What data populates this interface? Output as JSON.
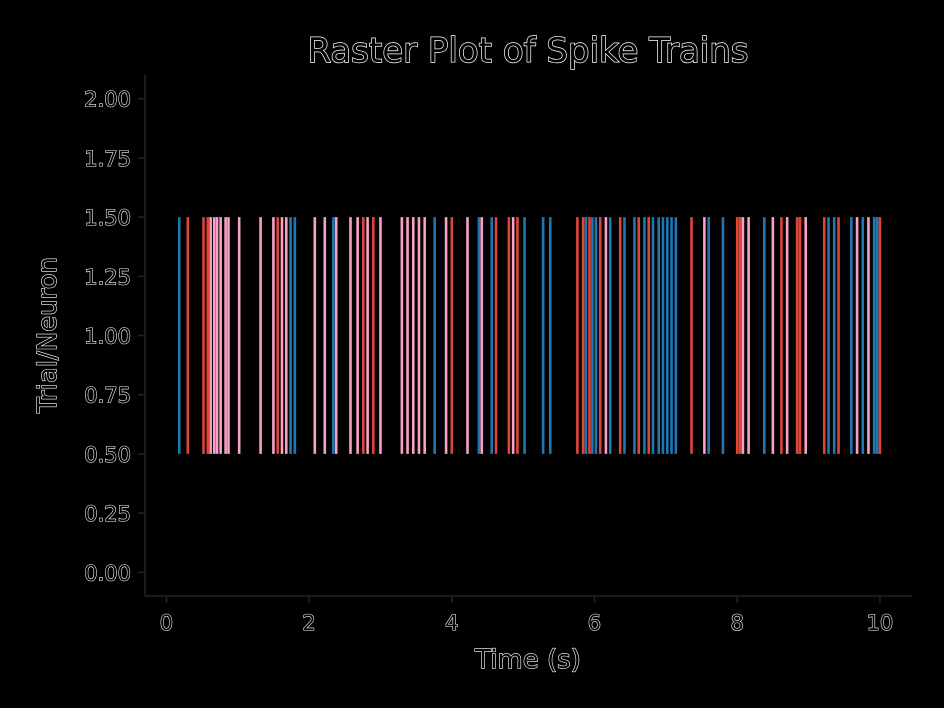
{
  "chart_data": {
    "type": "raster",
    "title": "Raster Plot of Spike Trains",
    "xlabel": "Time (s)",
    "ylabel": "Trial/Neuron",
    "xlim": [
      -0.3,
      10.45
    ],
    "ylim": [
      -0.1,
      2.1
    ],
    "xticks": [
      0,
      2,
      4,
      6,
      8,
      10
    ],
    "xtick_labels": [
      "0",
      "2",
      "4",
      "6",
      "8",
      "10"
    ],
    "yticks": [
      0.0,
      0.25,
      0.5,
      0.75,
      1.0,
      1.25,
      1.5,
      1.75,
      2.0
    ],
    "ytick_labels": [
      "0.00",
      "0.25",
      "0.50",
      "0.75",
      "1.00",
      "1.25",
      "1.50",
      "1.75",
      "2.00"
    ],
    "line_y_range": [
      0.5,
      1.5
    ],
    "grid": false,
    "colors": {
      "blue": "#1f77b4",
      "red": "#e0453a",
      "pink": "#f7a1c4"
    },
    "spikes": [
      {
        "x": 0.18,
        "color": "blue"
      },
      {
        "x": 0.3,
        "color": "red"
      },
      {
        "x": 0.52,
        "color": "red"
      },
      {
        "x": 0.58,
        "color": "red"
      },
      {
        "x": 0.62,
        "color": "pink"
      },
      {
        "x": 0.67,
        "color": "pink"
      },
      {
        "x": 0.71,
        "color": "pink"
      },
      {
        "x": 0.76,
        "color": "pink"
      },
      {
        "x": 0.83,
        "color": "pink"
      },
      {
        "x": 0.87,
        "color": "pink"
      },
      {
        "x": 1.02,
        "color": "pink"
      },
      {
        "x": 1.32,
        "color": "pink"
      },
      {
        "x": 1.5,
        "color": "pink"
      },
      {
        "x": 1.56,
        "color": "red"
      },
      {
        "x": 1.62,
        "color": "pink"
      },
      {
        "x": 1.68,
        "color": "pink"
      },
      {
        "x": 1.74,
        "color": "blue"
      },
      {
        "x": 1.8,
        "color": "blue"
      },
      {
        "x": 2.08,
        "color": "pink"
      },
      {
        "x": 2.22,
        "color": "pink"
      },
      {
        "x": 2.34,
        "color": "blue"
      },
      {
        "x": 2.38,
        "color": "pink"
      },
      {
        "x": 2.58,
        "color": "pink"
      },
      {
        "x": 2.68,
        "color": "pink"
      },
      {
        "x": 2.76,
        "color": "red"
      },
      {
        "x": 2.82,
        "color": "pink"
      },
      {
        "x": 2.9,
        "color": "red"
      },
      {
        "x": 3.0,
        "color": "pink"
      },
      {
        "x": 3.3,
        "color": "pink"
      },
      {
        "x": 3.38,
        "color": "pink"
      },
      {
        "x": 3.46,
        "color": "pink"
      },
      {
        "x": 3.54,
        "color": "pink"
      },
      {
        "x": 3.62,
        "color": "pink"
      },
      {
        "x": 3.76,
        "color": "blue"
      },
      {
        "x": 3.92,
        "color": "pink"
      },
      {
        "x": 4.0,
        "color": "red"
      },
      {
        "x": 4.22,
        "color": "pink"
      },
      {
        "x": 4.38,
        "color": "blue"
      },
      {
        "x": 4.42,
        "color": "pink"
      },
      {
        "x": 4.56,
        "color": "blue"
      },
      {
        "x": 4.62,
        "color": "red"
      },
      {
        "x": 4.8,
        "color": "red"
      },
      {
        "x": 4.86,
        "color": "pink"
      },
      {
        "x": 4.92,
        "color": "red"
      },
      {
        "x": 5.02,
        "color": "blue"
      },
      {
        "x": 5.28,
        "color": "blue"
      },
      {
        "x": 5.38,
        "color": "blue"
      },
      {
        "x": 5.76,
        "color": "red"
      },
      {
        "x": 5.84,
        "color": "red"
      },
      {
        "x": 5.88,
        "color": "blue"
      },
      {
        "x": 5.93,
        "color": "red"
      },
      {
        "x": 5.97,
        "color": "blue"
      },
      {
        "x": 6.02,
        "color": "blue"
      },
      {
        "x": 6.08,
        "color": "red"
      },
      {
        "x": 6.16,
        "color": "pink"
      },
      {
        "x": 6.22,
        "color": "blue"
      },
      {
        "x": 6.36,
        "color": "red"
      },
      {
        "x": 6.42,
        "color": "blue"
      },
      {
        "x": 6.56,
        "color": "blue"
      },
      {
        "x": 6.62,
        "color": "red"
      },
      {
        "x": 6.7,
        "color": "blue"
      },
      {
        "x": 6.76,
        "color": "red"
      },
      {
        "x": 6.82,
        "color": "blue"
      },
      {
        "x": 6.9,
        "color": "blue"
      },
      {
        "x": 6.96,
        "color": "blue"
      },
      {
        "x": 7.02,
        "color": "blue"
      },
      {
        "x": 7.08,
        "color": "blue"
      },
      {
        "x": 7.14,
        "color": "blue"
      },
      {
        "x": 7.36,
        "color": "red"
      },
      {
        "x": 7.54,
        "color": "pink"
      },
      {
        "x": 7.6,
        "color": "blue"
      },
      {
        "x": 7.8,
        "color": "blue"
      },
      {
        "x": 8.0,
        "color": "red"
      },
      {
        "x": 8.04,
        "color": "red"
      },
      {
        "x": 8.08,
        "color": "pink"
      },
      {
        "x": 8.16,
        "color": "pink"
      },
      {
        "x": 8.38,
        "color": "blue"
      },
      {
        "x": 8.5,
        "color": "pink"
      },
      {
        "x": 8.62,
        "color": "red"
      },
      {
        "x": 8.7,
        "color": "pink"
      },
      {
        "x": 8.84,
        "color": "red"
      },
      {
        "x": 8.88,
        "color": "red"
      },
      {
        "x": 8.96,
        "color": "pink"
      },
      {
        "x": 9.22,
        "color": "red"
      },
      {
        "x": 9.28,
        "color": "blue"
      },
      {
        "x": 9.36,
        "color": "blue"
      },
      {
        "x": 9.42,
        "color": "red"
      },
      {
        "x": 9.6,
        "color": "blue"
      },
      {
        "x": 9.68,
        "color": "pink"
      },
      {
        "x": 9.76,
        "color": "blue"
      },
      {
        "x": 9.84,
        "color": "pink"
      },
      {
        "x": 9.92,
        "color": "blue"
      },
      {
        "x": 9.96,
        "color": "blue"
      },
      {
        "x": 10.0,
        "color": "red"
      }
    ]
  }
}
